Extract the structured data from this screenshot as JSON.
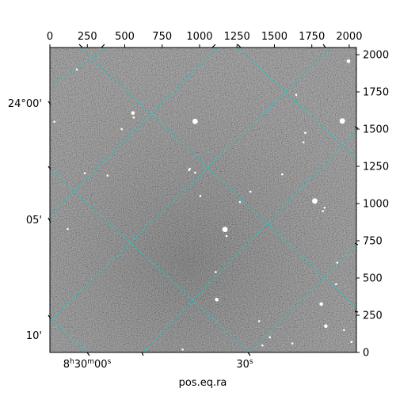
{
  "chart_data": {
    "type": "image",
    "xlabel": "pos.eq.ra",
    "ylabel": "",
    "xlim": [
      0,
      2048
    ],
    "ylim": [
      0,
      2048
    ],
    "pixel_ticks": {
      "top": [
        "0",
        "250",
        "500",
        "750",
        "1000",
        "1250",
        "1500",
        "1750",
        "2000"
      ],
      "right": [
        "0",
        "250",
        "500",
        "750",
        "1000",
        "1250",
        "1500",
        "1750",
        "2000"
      ]
    },
    "ra_ticks": [
      {
        "pre": "8",
        "h": "h",
        "mid": "30",
        "m": "m",
        "post": "00",
        "s": "s"
      },
      {
        "pre": "",
        "h": "",
        "mid": "",
        "m": "",
        "post": "30",
        "s": "s"
      }
    ],
    "dec_ticks": [
      "24°00'",
      "05'",
      "10'"
    ],
    "grid_color": "#1fc8c8",
    "image_background": "#6e6e6e",
    "stars": [
      {
        "x": 1954,
        "y": 1555,
        "mag": "bright"
      },
      {
        "x": 970,
        "y": 1552,
        "mag": "bright"
      },
      {
        "x": 1770,
        "y": 1017,
        "mag": "bright"
      },
      {
        "x": 1170,
        "y": 826,
        "mag": "bright"
      },
      {
        "x": 1115,
        "y": 355,
        "mag": "medium"
      },
      {
        "x": 1813,
        "y": 325,
        "mag": "medium"
      },
      {
        "x": 1844,
        "y": 177,
        "mag": "medium"
      },
      {
        "x": 1995,
        "y": 1956,
        "mag": "medium"
      },
      {
        "x": 555,
        "y": 1608,
        "mag": "medium"
      },
      {
        "x": 1180,
        "y": 782,
        "mag": "small"
      },
      {
        "x": 1706,
        "y": 1475,
        "mag": "small"
      },
      {
        "x": 1694,
        "y": 1411,
        "mag": "small"
      },
      {
        "x": 1552,
        "y": 1196,
        "mag": "small"
      },
      {
        "x": 1836,
        "y": 972,
        "mag": "small"
      },
      {
        "x": 1824,
        "y": 950,
        "mag": "small"
      },
      {
        "x": 930,
        "y": 1225,
        "mag": "small"
      },
      {
        "x": 233,
        "y": 1204,
        "mag": "small"
      },
      {
        "x": 385,
        "y": 1188,
        "mag": "small"
      },
      {
        "x": 30,
        "y": 1550,
        "mag": "small"
      },
      {
        "x": 119,
        "y": 829,
        "mag": "small"
      },
      {
        "x": 180,
        "y": 1900,
        "mag": "small"
      },
      {
        "x": 1920,
        "y": 603,
        "mag": "small"
      },
      {
        "x": 1912,
        "y": 458,
        "mag": "small"
      },
      {
        "x": 1420,
        "y": 47,
        "mag": "small"
      },
      {
        "x": 1470,
        "y": 102,
        "mag": "small"
      },
      {
        "x": 1965,
        "y": 150,
        "mag": "small"
      },
      {
        "x": 1270,
        "y": 1010,
        "mag": "small"
      },
      {
        "x": 1108,
        "y": 540,
        "mag": "small"
      },
      {
        "x": 887,
        "y": 20,
        "mag": "small"
      },
      {
        "x": 1398,
        "y": 210,
        "mag": "small"
      },
      {
        "x": 560,
        "y": 1578,
        "mag": "small"
      },
      {
        "x": 935,
        "y": 1233,
        "mag": "small"
      },
      {
        "x": 1005,
        "y": 1050,
        "mag": "small"
      },
      {
        "x": 970,
        "y": 1208,
        "mag": "small"
      },
      {
        "x": 1646,
        "y": 1730,
        "mag": "small"
      },
      {
        "x": 2015,
        "y": 70,
        "mag": "small"
      },
      {
        "x": 1340,
        "y": 1080,
        "mag": "small"
      },
      {
        "x": 480,
        "y": 1500,
        "mag": "small"
      },
      {
        "x": 1620,
        "y": 60,
        "mag": "small"
      }
    ]
  }
}
